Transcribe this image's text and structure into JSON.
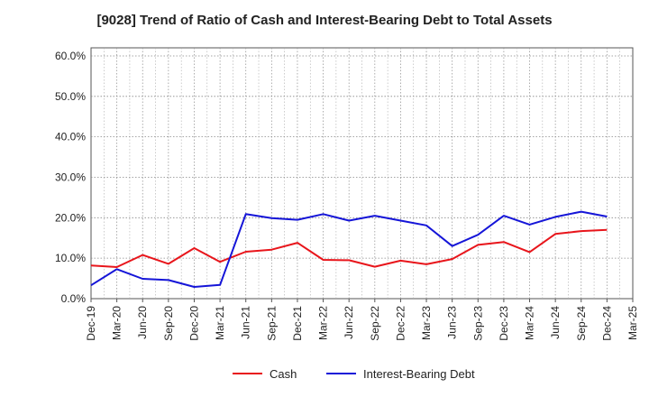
{
  "chart_data": {
    "type": "line",
    "title": "[9028]  Trend of Ratio of Cash and Interest-Bearing Debt to Total Assets",
    "xlabel": "",
    "ylabel": "",
    "x": [
      "Dec-19",
      "Mar-20",
      "Jun-20",
      "Sep-20",
      "Dec-20",
      "Mar-21",
      "Jun-21",
      "Sep-21",
      "Dec-21",
      "Mar-22",
      "Jun-22",
      "Sep-22",
      "Dec-22",
      "Mar-23",
      "Jun-23",
      "Sep-23",
      "Dec-23",
      "Mar-24",
      "Jun-24",
      "Sep-24",
      "Dec-24",
      "Mar-25"
    ],
    "yticks": [
      "0.0%",
      "10.0%",
      "20.0%",
      "30.0%",
      "40.0%",
      "50.0%",
      "60.0%"
    ],
    "ylim": [
      0,
      62
    ],
    "grid": true,
    "legend_position": "bottom",
    "series": [
      {
        "name": "Cash",
        "color": "#e8151b",
        "values": [
          8.2,
          7.8,
          10.8,
          8.6,
          12.5,
          9.1,
          11.6,
          12.1,
          13.8,
          9.6,
          9.5,
          7.9,
          9.4,
          8.5,
          9.8,
          13.3,
          14.0,
          11.5,
          16.0,
          16.7,
          17.0,
          null
        ]
      },
      {
        "name": "Interest-Bearing Debt",
        "color": "#1515d8",
        "values": [
          3.3,
          7.3,
          4.9,
          4.6,
          2.9,
          3.4,
          20.9,
          19.9,
          19.5,
          20.9,
          19.3,
          20.5,
          19.3,
          18.1,
          13.0,
          15.8,
          20.5,
          18.3,
          20.2,
          21.5,
          20.3,
          null
        ]
      }
    ]
  }
}
